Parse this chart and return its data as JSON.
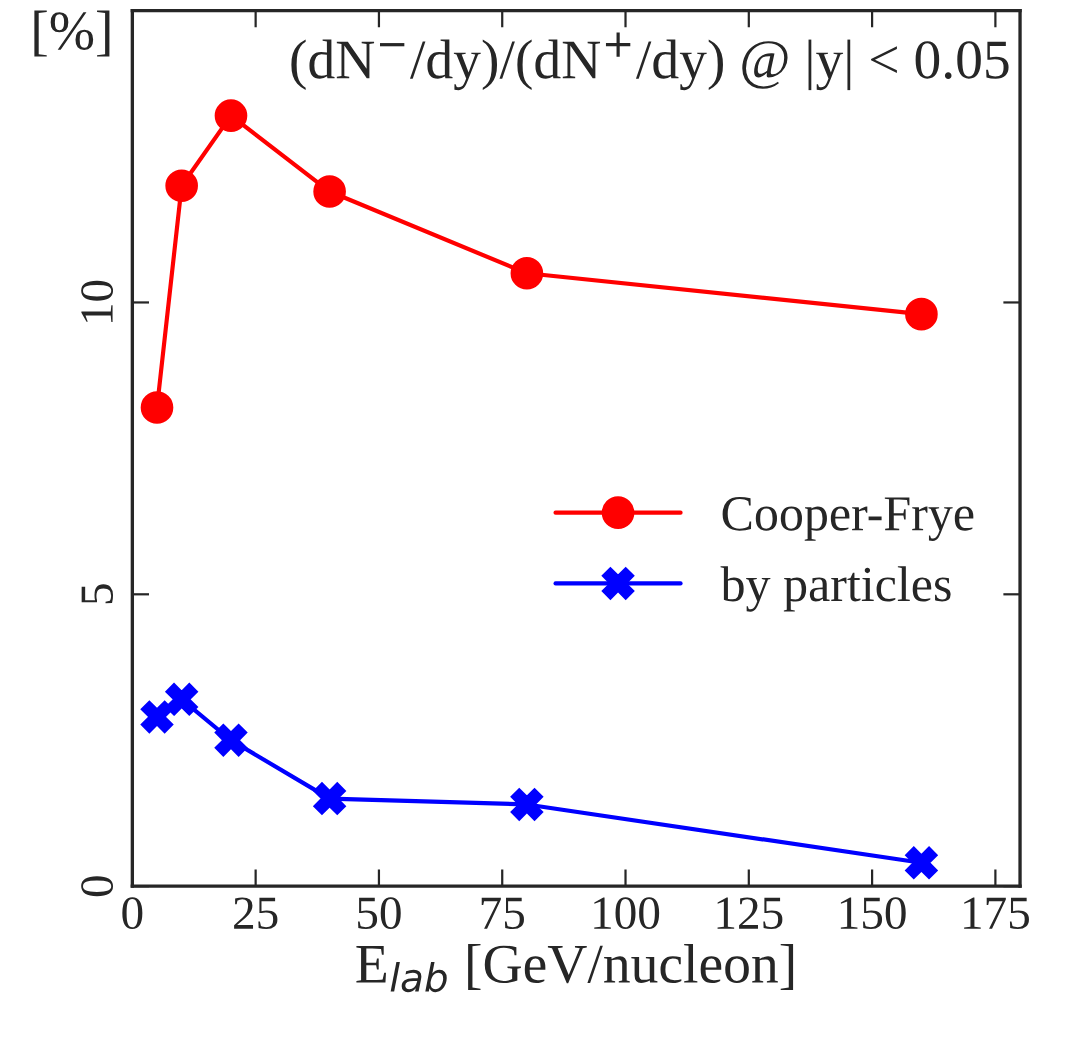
{
  "chart_data": {
    "type": "line",
    "title": "(dN$^{−}$/dy)/(dN$^{+}$/dy) @ |y| < 0.05",
    "xlabel": "E$_{lab}$ [GeV/nucleon]",
    "ylabel": "[%]",
    "x": [
      5,
      10,
      20,
      40,
      80,
      160
    ],
    "series": [
      {
        "name": "Cooper-Frye",
        "color": "#ff0000",
        "marker": "circle",
        "values": [
          8.2,
          12.0,
          13.2,
          11.9,
          10.5,
          9.8
        ]
      },
      {
        "name": "by particles",
        "color": "#0000ff",
        "marker": "cross",
        "values": [
          2.9,
          3.2,
          2.5,
          1.5,
          1.4,
          0.4
        ]
      }
    ],
    "xlim": [
      0,
      180
    ],
    "xticks": [
      0,
      25,
      50,
      75,
      100,
      125,
      150,
      175
    ],
    "ylim": [
      0,
      15
    ],
    "yticks": [
      0,
      5,
      10
    ],
    "legend": "right",
    "grid": false,
    "line_style": "solid"
  }
}
